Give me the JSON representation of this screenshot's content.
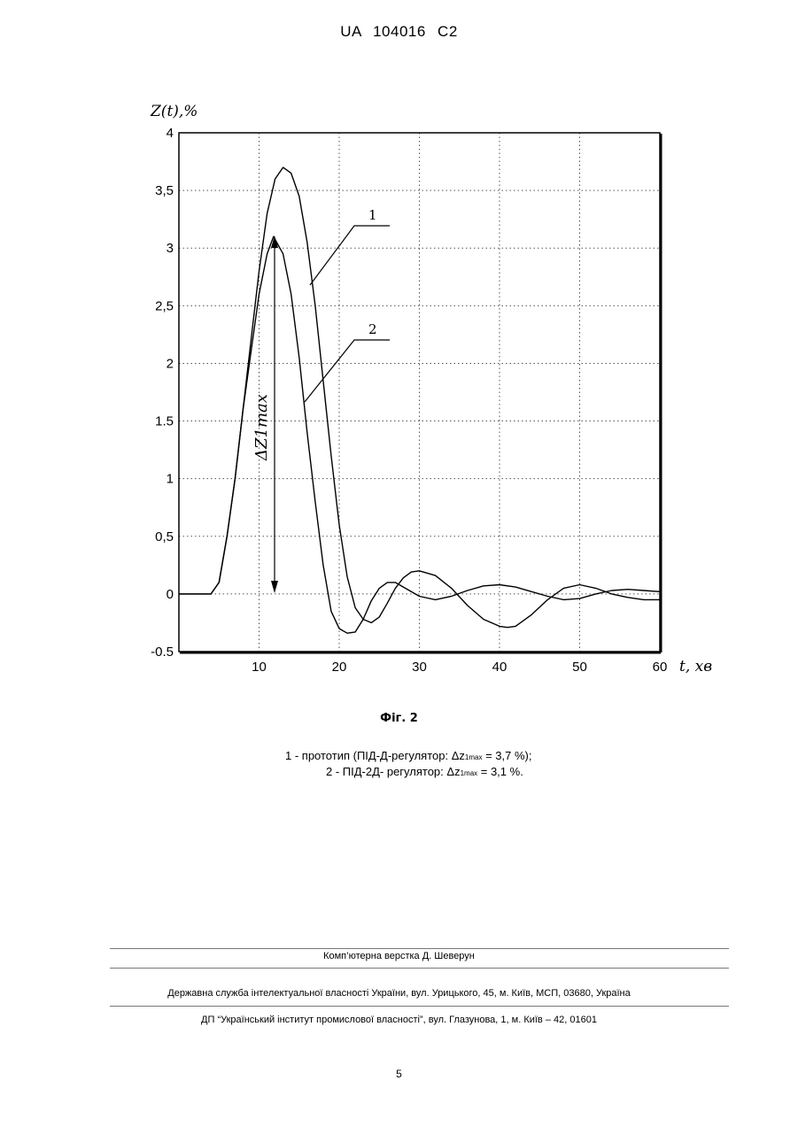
{
  "header": {
    "text": "UA   104016   C2"
  },
  "chart_data": {
    "type": "line",
    "ylabel": "Z(t),%",
    "xlabel": "t, хв",
    "xlim": [
      0,
      60
    ],
    "ylim": [
      -0.5,
      4
    ],
    "xticks": [
      "10",
      "20",
      "30",
      "40",
      "50",
      "60"
    ],
    "yticks": [
      "4",
      "3,5",
      "3",
      "2,5",
      "2",
      "1.5",
      "1",
      "0,5",
      "0",
      "-0.5"
    ],
    "grid": true,
    "annotation": "ΔZ1max",
    "series": [
      {
        "name": "1",
        "x": [
          0,
          4,
          5,
          6,
          7,
          8,
          9,
          10,
          11,
          12,
          13,
          14,
          15,
          16,
          17,
          18,
          19,
          20,
          21,
          22,
          23,
          24,
          25,
          26,
          27,
          28,
          29,
          30,
          32,
          34,
          36,
          38,
          40,
          41,
          42,
          44,
          46,
          48,
          50,
          52,
          54,
          56,
          58,
          60
        ],
        "y": [
          0,
          0,
          0.1,
          0.5,
          1.0,
          1.6,
          2.2,
          2.8,
          3.3,
          3.6,
          3.7,
          3.65,
          3.45,
          3.05,
          2.5,
          1.85,
          1.2,
          0.6,
          0.15,
          -0.12,
          -0.22,
          -0.25,
          -0.2,
          -0.08,
          0.05,
          0.14,
          0.19,
          0.2,
          0.16,
          0.05,
          -0.1,
          -0.22,
          -0.28,
          -0.29,
          -0.28,
          -0.18,
          -0.05,
          0.05,
          0.08,
          0.05,
          0.0,
          -0.03,
          -0.05,
          -0.05
        ]
      },
      {
        "name": "2",
        "x": [
          0,
          4,
          5,
          6,
          7,
          8,
          9,
          10,
          11,
          11.8,
          13,
          14,
          15,
          16,
          17,
          18,
          19,
          20,
          21,
          22,
          23,
          24,
          25,
          26,
          27,
          28,
          30,
          32,
          34,
          36,
          38,
          40,
          42,
          44,
          46,
          48,
          50,
          52,
          54,
          56,
          58,
          60
        ],
        "y": [
          0,
          0,
          0.1,
          0.5,
          1.0,
          1.6,
          2.1,
          2.6,
          2.95,
          3.1,
          2.95,
          2.6,
          2.05,
          1.4,
          0.8,
          0.25,
          -0.15,
          -0.3,
          -0.34,
          -0.33,
          -0.22,
          -0.06,
          0.05,
          0.1,
          0.1,
          0.06,
          -0.02,
          -0.05,
          -0.02,
          0.03,
          0.07,
          0.08,
          0.06,
          0.02,
          -0.02,
          -0.05,
          -0.04,
          0.0,
          0.03,
          0.04,
          0.03,
          0.02
        ]
      }
    ]
  },
  "figure_caption": "Фіг. 2",
  "legend": {
    "line1_prefix": "1 - прототип (ПІД-Д-регулятор: Δz",
    "line1_sub": "1max",
    "line1_suffix": " = 3,7 %);",
    "line2_prefix": "2 - ПІД-2Д- регулятор: Δz",
    "line2_sub": "1max",
    "line2_suffix": " = 3,1 %."
  },
  "footer": {
    "layout_credit": "Комп’ютерна верстка Д. Шеверун",
    "agency": "Державна служба інтелектуальної власності України, вул. Урицького, 45, м. Київ, МСП, 03680, Україна",
    "institute": "ДП “Український інститут промислової власності”, вул. Глазунова, 1, м. Київ – 42, 01601",
    "page_number": "5"
  }
}
